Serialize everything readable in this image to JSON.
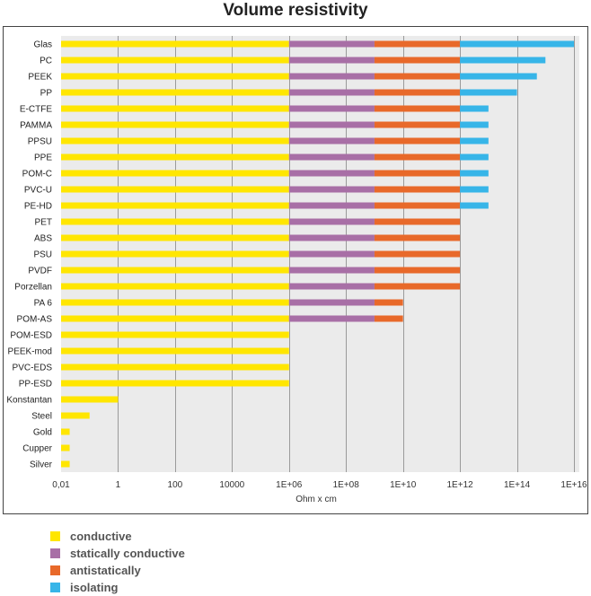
{
  "chart_data": {
    "type": "bar",
    "stacked": true,
    "orientation": "horizontal",
    "title": "Volume resistivity",
    "xlabel": "Ohm x cm",
    "ylabel": "",
    "x_scale": "log",
    "xlim": [
      0.01,
      1e+16
    ],
    "grid": true,
    "legend_position": "bottom",
    "tick_values": [
      0.01,
      1,
      100,
      10000,
      1000000,
      100000000.0,
      10000000000.0,
      1000000000000.0,
      100000000000000.0,
      1e+16
    ],
    "tick_labels": [
      "0,01",
      "1",
      "100",
      "10000",
      "1E+06",
      "1E+08",
      "1E+10",
      "1E+12",
      "1E+14",
      "1E+16"
    ],
    "categories": [
      "Glas",
      "PC",
      "PEEK",
      "PP",
      "E-CTFE",
      "PAMMA",
      "PPSU",
      "PPE",
      "POM-C",
      "PVC-U",
      "PE-HD",
      "PET",
      "ABS",
      "PSU",
      "PVDF",
      "Porzellan",
      "PA 6",
      "POM-AS",
      "POM-ESD",
      "PEEK-mod",
      "PVC-EDS",
      "PP-ESD",
      "Konstantan",
      "Steel",
      "Gold",
      "Cupper",
      "Silver"
    ],
    "values": [
      1e+16,
      1000000000000000.0,
      500000000000000.0,
      100000000000000.0,
      10000000000000.0,
      10000000000000.0,
      10000000000000.0,
      10000000000000.0,
      10000000000000.0,
      10000000000000.0,
      10000000000000.0,
      1000000000000.0,
      1000000000000.0,
      1000000000000.0,
      1000000000000.0,
      1000000000000.0,
      10000000000.0,
      10000000000.0,
      1000000,
      1000000,
      1000000,
      1000000,
      1,
      0.1,
      0.02,
      0.02,
      0.02
    ],
    "series": [
      {
        "name": "conductive",
        "color": "#ffe600",
        "from": 0.01,
        "to": 1000000
      },
      {
        "name": "statically conductive",
        "color": "#a86fa6",
        "from": 1000000,
        "to": 1000000000
      },
      {
        "name": "antistatically",
        "color": "#e8692a",
        "from": 1000000000,
        "to": 1000000000000
      },
      {
        "name": "isolating",
        "color": "#37b5e8",
        "from": 1000000000000,
        "to": 1e+16
      }
    ]
  }
}
